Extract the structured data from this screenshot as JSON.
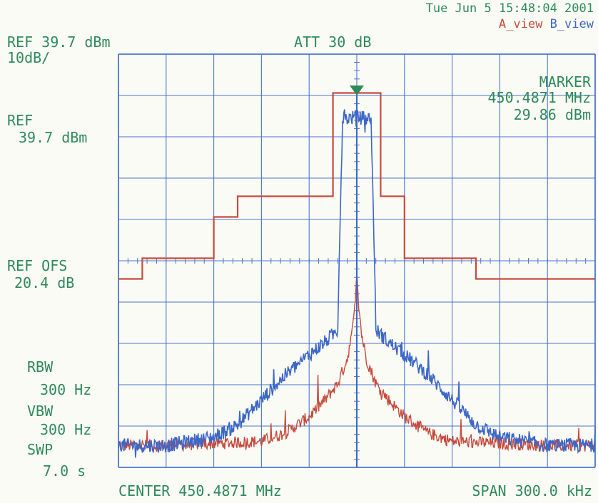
{
  "header": {
    "date": "Tue Jun  5 15:48:04 2001",
    "a_view": "A_view",
    "b_view": "B_view",
    "ref_top": "REF 39.7 dBm",
    "scale": "10dB/",
    "att": "ATT 30 dB"
  },
  "left_panel": {
    "ref_label": "REF",
    "ref_value": "39.7 dBm",
    "ref_ofs_label": "REF OFS",
    "ref_ofs_value": "20.4 dB",
    "rbw_label": "RBW",
    "rbw_value": "300 Hz",
    "vbw_label": "VBW",
    "vbw_value": "300 Hz",
    "swp_label": "SWP",
    "swp_value": "7.0 s"
  },
  "marker": {
    "label": "MARKER",
    "frequency": "450.4871 MHz",
    "level": "29.86 dBm"
  },
  "footer": {
    "center": "CENTER 450.4871 MHz",
    "span": "SPAN 300.0 kHz"
  },
  "colors": {
    "text": "#2e8a5c",
    "grid": "#4a76cf",
    "a_trace": "#c64a3d",
    "b_trace": "#3c67c8",
    "marker": "#2e8a5c"
  },
  "chart_data": {
    "type": "line",
    "x_unit": "kHz offset from center",
    "y_unit": "dBm",
    "xlim": [
      -150,
      150
    ],
    "ylim": [
      -60.3,
      39.7
    ],
    "grid": true,
    "grid_divisions": {
      "x": 10,
      "y": 10
    },
    "marker_x": 0,
    "marker_y": 29.86,
    "series": [
      {
        "name": "A_view",
        "x": [
          -150,
          -135,
          -135,
          -90,
          -90,
          -75,
          -75,
          -15,
          -15,
          15,
          15,
          30,
          30,
          75,
          75,
          90,
          90,
          150
        ],
        "y": [
          -14.7,
          -14.7,
          -9.7,
          -9.7,
          0.3,
          0.3,
          5.3,
          5.3,
          30.3,
          30.3,
          5.3,
          5.3,
          -9.7,
          -9.7,
          -14.7,
          -14.7,
          -14.7,
          -14.7
        ]
      },
      {
        "name": "A_view",
        "x": [
          -150,
          -120,
          -90,
          -60,
          -45,
          -30,
          -20,
          -12,
          -6,
          -3,
          -1,
          0,
          1,
          3,
          6,
          12,
          20,
          30,
          45,
          60,
          90,
          120,
          150
        ],
        "y": [
          -55,
          -55,
          -54.5,
          -54,
          -52,
          -48,
          -44,
          -40,
          -34,
          -28,
          -20,
          -12,
          -20,
          -28,
          -34,
          -40,
          -44,
          -48,
          -52,
          -54,
          -54.5,
          -55,
          -55
        ]
      },
      {
        "name": "B_view",
        "x": [
          -150,
          -120,
          -90,
          -75,
          -60,
          -45,
          -30,
          -20,
          -12,
          -11,
          -9,
          0,
          9,
          11,
          12,
          20,
          30,
          45,
          60,
          75,
          90,
          120,
          150
        ],
        "y": [
          -55,
          -55,
          -53,
          -50,
          -44,
          -38,
          -33,
          -30,
          -27,
          -8,
          24,
          24.5,
          24,
          -8,
          -27,
          -30,
          -33,
          -38,
          -44,
          -50,
          -53,
          -55,
          -55
        ]
      }
    ]
  }
}
